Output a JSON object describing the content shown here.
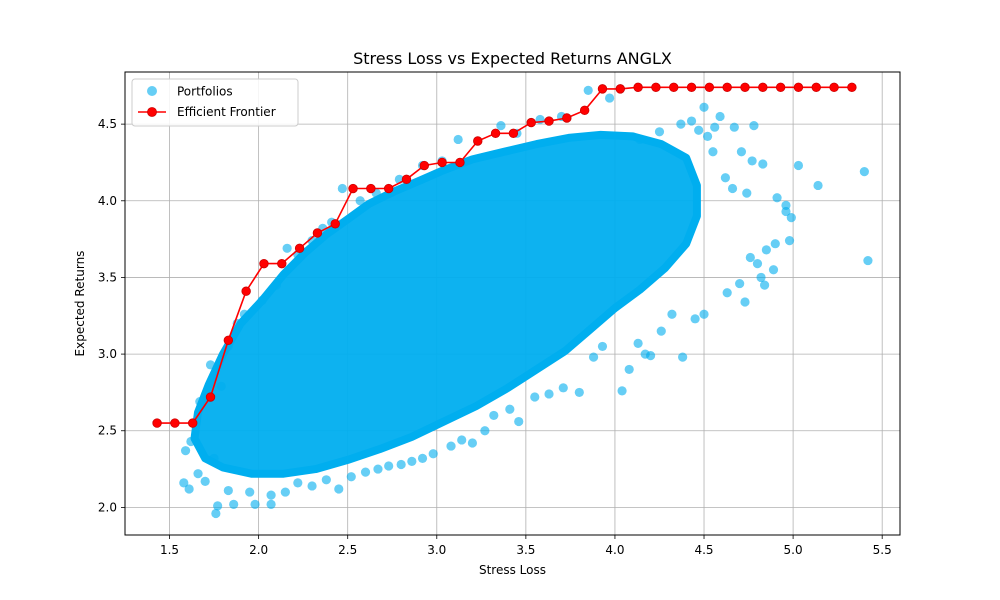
{
  "chart_data": {
    "type": "scatter",
    "title": "Stress Loss vs Expected Returns ANGLX",
    "xlabel": "Stress Loss",
    "ylabel": "Expected Returns",
    "xlim": [
      1.25,
      5.6
    ],
    "ylim": [
      1.82,
      4.84
    ],
    "grid": true,
    "legend_position": "top-left",
    "x_ticks": [
      1.5,
      2.0,
      2.5,
      3.0,
      3.5,
      4.0,
      4.5,
      5.0,
      5.5
    ],
    "x_tick_labels": [
      "1.5",
      "2.0",
      "2.5",
      "3.0",
      "3.5",
      "4.0",
      "4.5",
      "5.0",
      "5.5"
    ],
    "y_ticks": [
      2.0,
      2.5,
      3.0,
      3.5,
      4.0,
      4.5
    ],
    "y_tick_labels": [
      "2.0",
      "2.5",
      "3.0",
      "3.5",
      "4.0",
      "4.5"
    ],
    "colors": {
      "portfolios": "#00aeef",
      "frontier": "#ff0000",
      "frontier_marker_edge": "#cc0000",
      "grid": "#b0b0b0"
    },
    "series": [
      {
        "name": "Portfolios",
        "kind": "scatter",
        "points": [
          [
            1.58,
            2.16
          ],
          [
            1.61,
            2.12
          ],
          [
            1.76,
            1.96
          ],
          [
            1.77,
            2.01
          ],
          [
            1.86,
            2.02
          ],
          [
            1.98,
            2.02
          ],
          [
            2.07,
            2.02
          ],
          [
            1.59,
            2.37
          ],
          [
            1.62,
            2.43
          ],
          [
            1.66,
            2.22
          ],
          [
            1.7,
            2.17
          ],
          [
            1.75,
            2.32
          ],
          [
            1.67,
            2.69
          ],
          [
            1.73,
            2.93
          ],
          [
            1.79,
            2.79
          ],
          [
            1.83,
            3.05
          ],
          [
            1.88,
            3.2
          ],
          [
            1.92,
            3.26
          ],
          [
            2.02,
            3.35
          ],
          [
            2.1,
            3.45
          ],
          [
            2.16,
            3.69
          ],
          [
            2.22,
            3.65
          ],
          [
            2.3,
            3.74
          ],
          [
            2.36,
            3.82
          ],
          [
            2.41,
            3.86
          ],
          [
            2.47,
            4.08
          ],
          [
            2.57,
            4.0
          ],
          [
            2.66,
            4.05
          ],
          [
            2.79,
            4.14
          ],
          [
            2.92,
            4.23
          ],
          [
            3.03,
            4.26
          ],
          [
            3.12,
            4.4
          ],
          [
            3.36,
            4.49
          ],
          [
            3.45,
            4.44
          ],
          [
            3.58,
            4.53
          ],
          [
            3.7,
            4.55
          ],
          [
            3.85,
            4.72
          ],
          [
            3.97,
            4.67
          ],
          [
            4.03,
            4.73
          ],
          [
            4.5,
            4.61
          ],
          [
            4.56,
            4.48
          ],
          [
            4.67,
            4.48
          ],
          [
            4.47,
            4.46
          ],
          [
            4.52,
            4.42
          ],
          [
            4.55,
            4.32
          ],
          [
            4.62,
            4.15
          ],
          [
            4.66,
            4.08
          ],
          [
            4.71,
            4.32
          ],
          [
            4.74,
            4.05
          ],
          [
            4.77,
            4.26
          ],
          [
            4.83,
            4.24
          ],
          [
            4.85,
            3.68
          ],
          [
            4.91,
            4.02
          ],
          [
            4.96,
            3.93
          ],
          [
            4.99,
            3.89
          ],
          [
            5.03,
            4.23
          ],
          [
            5.14,
            4.1
          ],
          [
            5.4,
            4.19
          ],
          [
            5.42,
            3.61
          ],
          [
            4.96,
            3.97
          ],
          [
            4.89,
            3.55
          ],
          [
            4.82,
            3.5
          ],
          [
            4.8,
            3.59
          ],
          [
            4.84,
            3.45
          ],
          [
            4.73,
            3.34
          ],
          [
            4.5,
            3.26
          ],
          [
            4.38,
            2.98
          ],
          [
            4.2,
            2.99
          ],
          [
            4.17,
            3.0
          ],
          [
            4.08,
            2.9
          ],
          [
            4.04,
            2.76
          ],
          [
            3.93,
            3.05
          ],
          [
            3.88,
            2.98
          ],
          [
            3.8,
            2.75
          ],
          [
            3.71,
            2.78
          ],
          [
            3.63,
            2.74
          ],
          [
            3.55,
            2.72
          ],
          [
            3.46,
            2.56
          ],
          [
            3.41,
            2.64
          ],
          [
            3.32,
            2.6
          ],
          [
            3.27,
            2.5
          ],
          [
            3.2,
            2.42
          ],
          [
            3.14,
            2.44
          ],
          [
            3.08,
            2.4
          ],
          [
            2.98,
            2.35
          ],
          [
            2.92,
            2.32
          ],
          [
            2.86,
            2.3
          ],
          [
            2.8,
            2.28
          ],
          [
            2.73,
            2.27
          ],
          [
            2.67,
            2.25
          ],
          [
            2.6,
            2.23
          ],
          [
            2.52,
            2.2
          ],
          [
            2.45,
            2.12
          ],
          [
            2.38,
            2.18
          ],
          [
            2.3,
            2.14
          ],
          [
            2.22,
            2.16
          ],
          [
            2.15,
            2.1
          ],
          [
            2.07,
            2.08
          ],
          [
            1.95,
            2.1
          ],
          [
            1.83,
            2.11
          ],
          [
            4.59,
            4.55
          ],
          [
            4.43,
            4.52
          ],
          [
            4.37,
            4.5
          ],
          [
            4.25,
            4.45
          ],
          [
            4.14,
            4.4
          ],
          [
            4.78,
            4.49
          ],
          [
            4.9,
            3.72
          ],
          [
            4.98,
            3.74
          ],
          [
            4.76,
            3.63
          ],
          [
            4.7,
            3.46
          ],
          [
            4.63,
            3.4
          ],
          [
            4.45,
            3.23
          ],
          [
            4.32,
            3.26
          ],
          [
            4.26,
            3.15
          ],
          [
            4.13,
            3.07
          ]
        ]
      },
      {
        "name": "Efficient Frontier",
        "kind": "line-marker",
        "points": [
          [
            1.43,
            2.55
          ],
          [
            1.53,
            2.55
          ],
          [
            1.63,
            2.55
          ],
          [
            1.73,
            2.72
          ],
          [
            1.83,
            3.09
          ],
          [
            1.93,
            3.41
          ],
          [
            2.03,
            3.59
          ],
          [
            2.13,
            3.59
          ],
          [
            2.23,
            3.69
          ],
          [
            2.33,
            3.79
          ],
          [
            2.43,
            3.85
          ],
          [
            2.53,
            4.08
          ],
          [
            2.63,
            4.08
          ],
          [
            2.73,
            4.08
          ],
          [
            2.83,
            4.14
          ],
          [
            2.93,
            4.23
          ],
          [
            3.03,
            4.25
          ],
          [
            3.13,
            4.25
          ],
          [
            3.23,
            4.39
          ],
          [
            3.33,
            4.44
          ],
          [
            3.43,
            4.44
          ],
          [
            3.53,
            4.51
          ],
          [
            3.63,
            4.52
          ],
          [
            3.73,
            4.54
          ],
          [
            3.83,
            4.59
          ],
          [
            3.93,
            4.73
          ],
          [
            4.03,
            4.73
          ],
          [
            4.13,
            4.74
          ],
          [
            4.23,
            4.74
          ],
          [
            4.33,
            4.74
          ],
          [
            4.43,
            4.74
          ],
          [
            4.53,
            4.74
          ],
          [
            4.63,
            4.74
          ],
          [
            4.73,
            4.74
          ],
          [
            4.83,
            4.74
          ],
          [
            4.93,
            4.74
          ],
          [
            5.03,
            4.74
          ],
          [
            5.13,
            4.74
          ],
          [
            5.23,
            4.74
          ],
          [
            5.33,
            4.74
          ]
        ]
      }
    ]
  }
}
